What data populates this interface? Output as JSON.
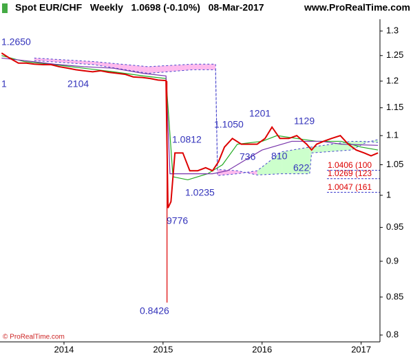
{
  "chart_data": {
    "type": "line",
    "title": "Spot EUR/CHF   Weekly   1.0698 (-0.10%)   08-Mar-2017",
    "site": "www.ProRealTime.com",
    "copyright": "© ProRealTime.com",
    "log_y": true,
    "xlim": [
      2013.354,
      2017.19
    ],
    "xticks": [
      2014,
      2015,
      2016,
      2017
    ],
    "ylim": [
      0.7913,
      1.3246
    ],
    "yticks": [
      1.3,
      1.25,
      1.2,
      1.15,
      1.1,
      1.05,
      1,
      0.95,
      0.9,
      0.85,
      0.8
    ],
    "series": [
      {
        "color": "#dd0000",
        "x": [
          2013.37,
          2013.45,
          2013.54,
          2013.62,
          2013.7,
          2013.79,
          2013.87,
          2013.95,
          2014.04,
          2014.12,
          2014.2,
          2014.29,
          2014.37,
          2014.45,
          2014.54,
          2014.62,
          2014.7,
          2014.79,
          2014.87,
          2014.95,
          2015.03,
          2015.05,
          2015.08,
          2015.12,
          2015.2,
          2015.27,
          2015.35,
          2015.43,
          2015.5,
          2015.56,
          2015.62,
          2015.7,
          2015.79,
          2015.87,
          2015.95,
          2016.03,
          2016.1,
          2016.18,
          2016.27,
          2016.35,
          2016.45,
          2016.5,
          2016.55,
          2016.62,
          2016.7,
          2016.79,
          2016.87,
          2016.95,
          2017.03,
          2017.1,
          2017.17
        ],
        "values": [
          1.255,
          1.245,
          1.235,
          1.235,
          1.233,
          1.232,
          1.232,
          1.228,
          1.225,
          1.222,
          1.22,
          1.218,
          1.22,
          1.217,
          1.215,
          1.213,
          1.208,
          1.207,
          1.205,
          1.202,
          1.201,
          0.98,
          0.99,
          1.07,
          1.07,
          1.04,
          1.04,
          1.045,
          1.04,
          1.055,
          1.08,
          1.095,
          1.085,
          1.085,
          1.085,
          1.095,
          1.115,
          1.095,
          1.095,
          1.1,
          1.085,
          1.075,
          1.085,
          1.09,
          1.095,
          1.1,
          1.085,
          1.075,
          1.07,
          1.065,
          1.07
        ]
      },
      {
        "color": "#dd0000",
        "x": [
          2015.04,
          2015.04
        ],
        "values": [
          1.2,
          0.8426
        ]
      },
      {
        "color": "#22aa22",
        "x": [
          2013.37,
          2013.6,
          2013.9,
          2014.2,
          2014.5,
          2014.8,
          2015.03,
          2015.1,
          2015.25,
          2015.45,
          2015.6,
          2015.75,
          2016.0,
          2016.15,
          2016.35,
          2016.55,
          2016.8,
          2017.0,
          2017.17
        ],
        "values": [
          1.25,
          1.238,
          1.232,
          1.225,
          1.218,
          1.21,
          1.205,
          1.03,
          1.025,
          1.035,
          1.05,
          1.085,
          1.09,
          1.1,
          1.095,
          1.09,
          1.09,
          1.08,
          1.075
        ]
      },
      {
        "color": "#7733aa",
        "x": [
          2013.37,
          2013.6,
          2013.9,
          2014.2,
          2014.5,
          2014.8,
          2015.03,
          2015.07,
          2015.5,
          2015.65,
          2015.85,
          2016.0,
          2016.3,
          2016.6,
          2016.8,
          2017.17
        ],
        "values": [
          1.245,
          1.24,
          1.233,
          1.228,
          1.225,
          1.215,
          1.21,
          1.035,
          1.035,
          1.04,
          1.06,
          1.075,
          1.09,
          1.09,
          1.085,
          1.083
        ]
      }
    ],
    "cloud": {
      "up_color": "#ccffcc",
      "down_color": "#ffbbee",
      "edge_color": "#4444cc",
      "x": [
        2013.7,
        2014.3,
        2014.85,
        2015.3,
        2015.53,
        2015.55,
        2015.75,
        2015.95,
        2016.2,
        2016.48,
        2016.5,
        2016.9,
        2017.05,
        2017.17
      ],
      "a": [
        1.24,
        1.232,
        1.215,
        1.222,
        1.222,
        1.032,
        1.035,
        1.04,
        1.072,
        1.08,
        1.08,
        1.09,
        1.09,
        1.088
      ],
      "b": [
        1.245,
        1.238,
        1.228,
        1.233,
        1.233,
        1.042,
        1.04,
        1.033,
        1.035,
        1.035,
        1.07,
        1.075,
        1.088,
        1.093
      ]
    },
    "levels": [
      {
        "value": 1.0406,
        "label": "1.0406 (100"
      },
      {
        "value": 1.0269,
        "label": "1.0269 (123"
      },
      {
        "value": 1.0047,
        "label": "1.0047 (161"
      }
    ],
    "annotations": [
      "1.2650",
      "1",
      "2104",
      "1.0812",
      "1.0235",
      "9776",
      "0.8426",
      "1.1050",
      "1201",
      "736",
      "810",
      "1129",
      "622"
    ]
  }
}
